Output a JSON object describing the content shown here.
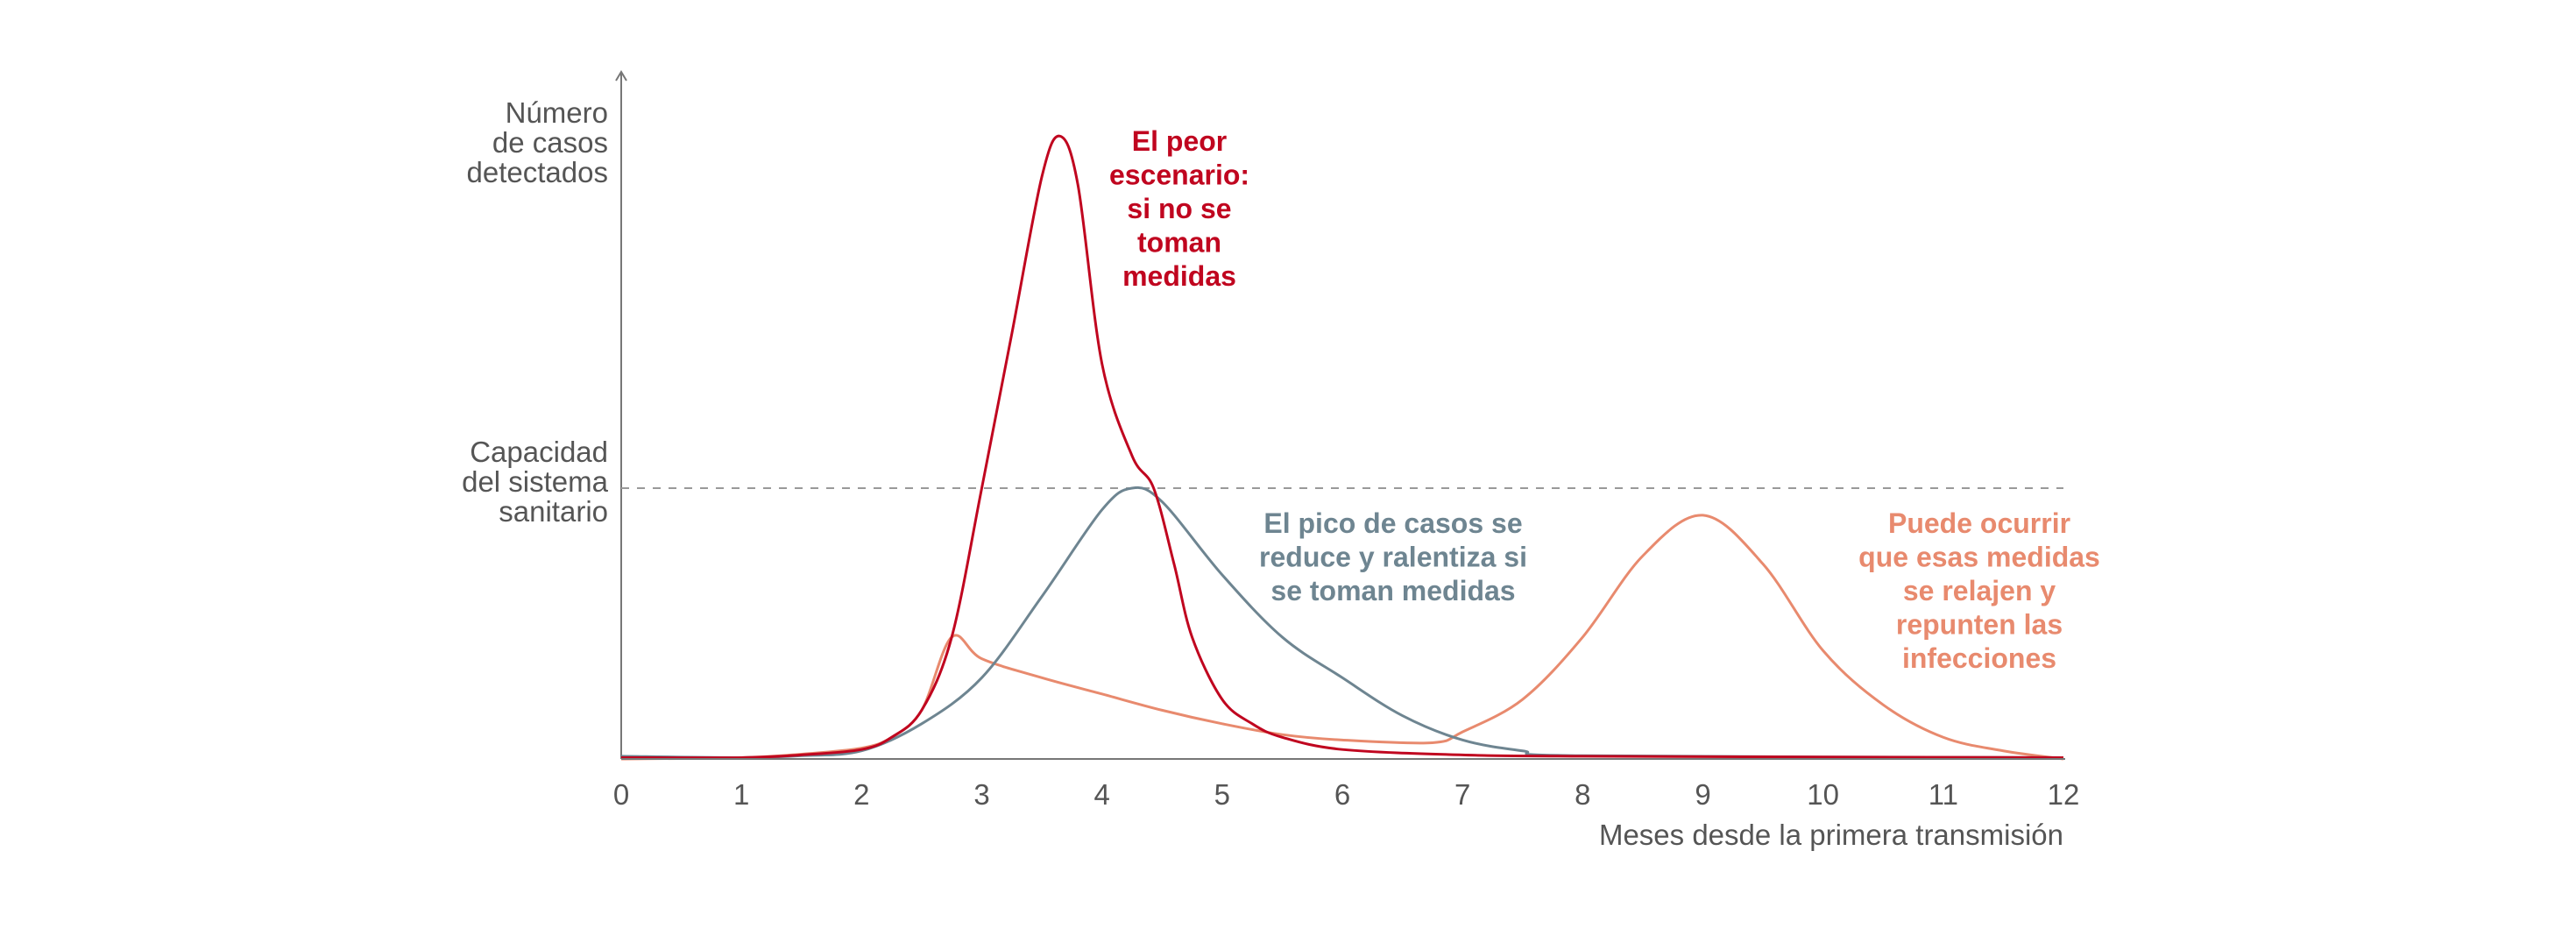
{
  "chart_data": {
    "type": "line",
    "xlabel": "Meses desde la primera transmisión",
    "ylabel": [
      "Número",
      "de casos",
      "detectados"
    ],
    "xlim": [
      0,
      12
    ],
    "ylim": [
      0,
      2.45
    ],
    "x_ticks": [
      "0",
      "1",
      "2",
      "3",
      "4",
      "5",
      "6",
      "7",
      "8",
      "9",
      "10",
      "11",
      "12"
    ],
    "grid": false,
    "capacity": {
      "value": 1.0,
      "label": [
        "Capacidad",
        "del sistema",
        "sanitario"
      ],
      "color": "#999999",
      "style": "dashed"
    },
    "series": [
      {
        "color": "#c0051f",
        "annotation": [
          "El peor",
          "escenario:",
          "si no se",
          "toman",
          "medidas"
        ],
        "points": [
          [
            0,
            0.005
          ],
          [
            1,
            0.005
          ],
          [
            1.5,
            0.015
          ],
          [
            2,
            0.035
          ],
          [
            2.25,
            0.08
          ],
          [
            2.5,
            0.18
          ],
          [
            2.75,
            0.45
          ],
          [
            3,
            1.0
          ],
          [
            3.25,
            1.57
          ],
          [
            3.5,
            2.15
          ],
          [
            3.65,
            2.3
          ],
          [
            3.8,
            2.12
          ],
          [
            4,
            1.46
          ],
          [
            4.25,
            1.12
          ],
          [
            4.43,
            1.0
          ],
          [
            4.6,
            0.72
          ],
          [
            4.75,
            0.45
          ],
          [
            5,
            0.22
          ],
          [
            5.25,
            0.13
          ],
          [
            5.5,
            0.08
          ],
          [
            6,
            0.035
          ],
          [
            7,
            0.015
          ],
          [
            8,
            0.01
          ],
          [
            12,
            0.005
          ]
        ]
      },
      {
        "color": "#6e8591",
        "annotation": [
          "El pico de casos se",
          "reduce y ralentiza si",
          "se toman medidas"
        ],
        "points": [
          [
            0,
            0.01
          ],
          [
            1,
            0.005
          ],
          [
            1.5,
            0.012
          ],
          [
            2,
            0.03
          ],
          [
            2.5,
            0.13
          ],
          [
            3,
            0.3
          ],
          [
            3.5,
            0.6
          ],
          [
            4,
            0.92
          ],
          [
            4.25,
            1.0
          ],
          [
            4.5,
            0.95
          ],
          [
            5,
            0.68
          ],
          [
            5.5,
            0.45
          ],
          [
            6,
            0.3
          ],
          [
            6.5,
            0.16
          ],
          [
            7,
            0.07
          ],
          [
            7.5,
            0.03
          ],
          [
            8,
            0.012
          ],
          [
            12,
            0.005
          ]
        ]
      },
      {
        "color": "#e88a6e",
        "annotation": [
          "Puede ocurrir",
          "que esas medidas",
          "se relajen y",
          "repunten las",
          "infecciones"
        ],
        "points": [
          [
            0,
            0.0
          ],
          [
            1,
            0.005
          ],
          [
            1.5,
            0.018
          ],
          [
            2,
            0.04
          ],
          [
            2.25,
            0.08
          ],
          [
            2.5,
            0.18
          ],
          [
            2.75,
            0.45
          ],
          [
            3,
            0.37
          ],
          [
            3.5,
            0.3
          ],
          [
            4,
            0.24
          ],
          [
            4.5,
            0.18
          ],
          [
            5,
            0.13
          ],
          [
            5.5,
            0.09
          ],
          [
            6,
            0.07
          ],
          [
            6.75,
            0.06
          ],
          [
            7,
            0.1
          ],
          [
            7.5,
            0.22
          ],
          [
            8,
            0.45
          ],
          [
            8.5,
            0.75
          ],
          [
            9,
            0.9
          ],
          [
            9.5,
            0.72
          ],
          [
            10,
            0.4
          ],
          [
            10.5,
            0.2
          ],
          [
            11,
            0.08
          ],
          [
            11.5,
            0.03
          ],
          [
            12,
            0.0
          ]
        ]
      }
    ]
  }
}
